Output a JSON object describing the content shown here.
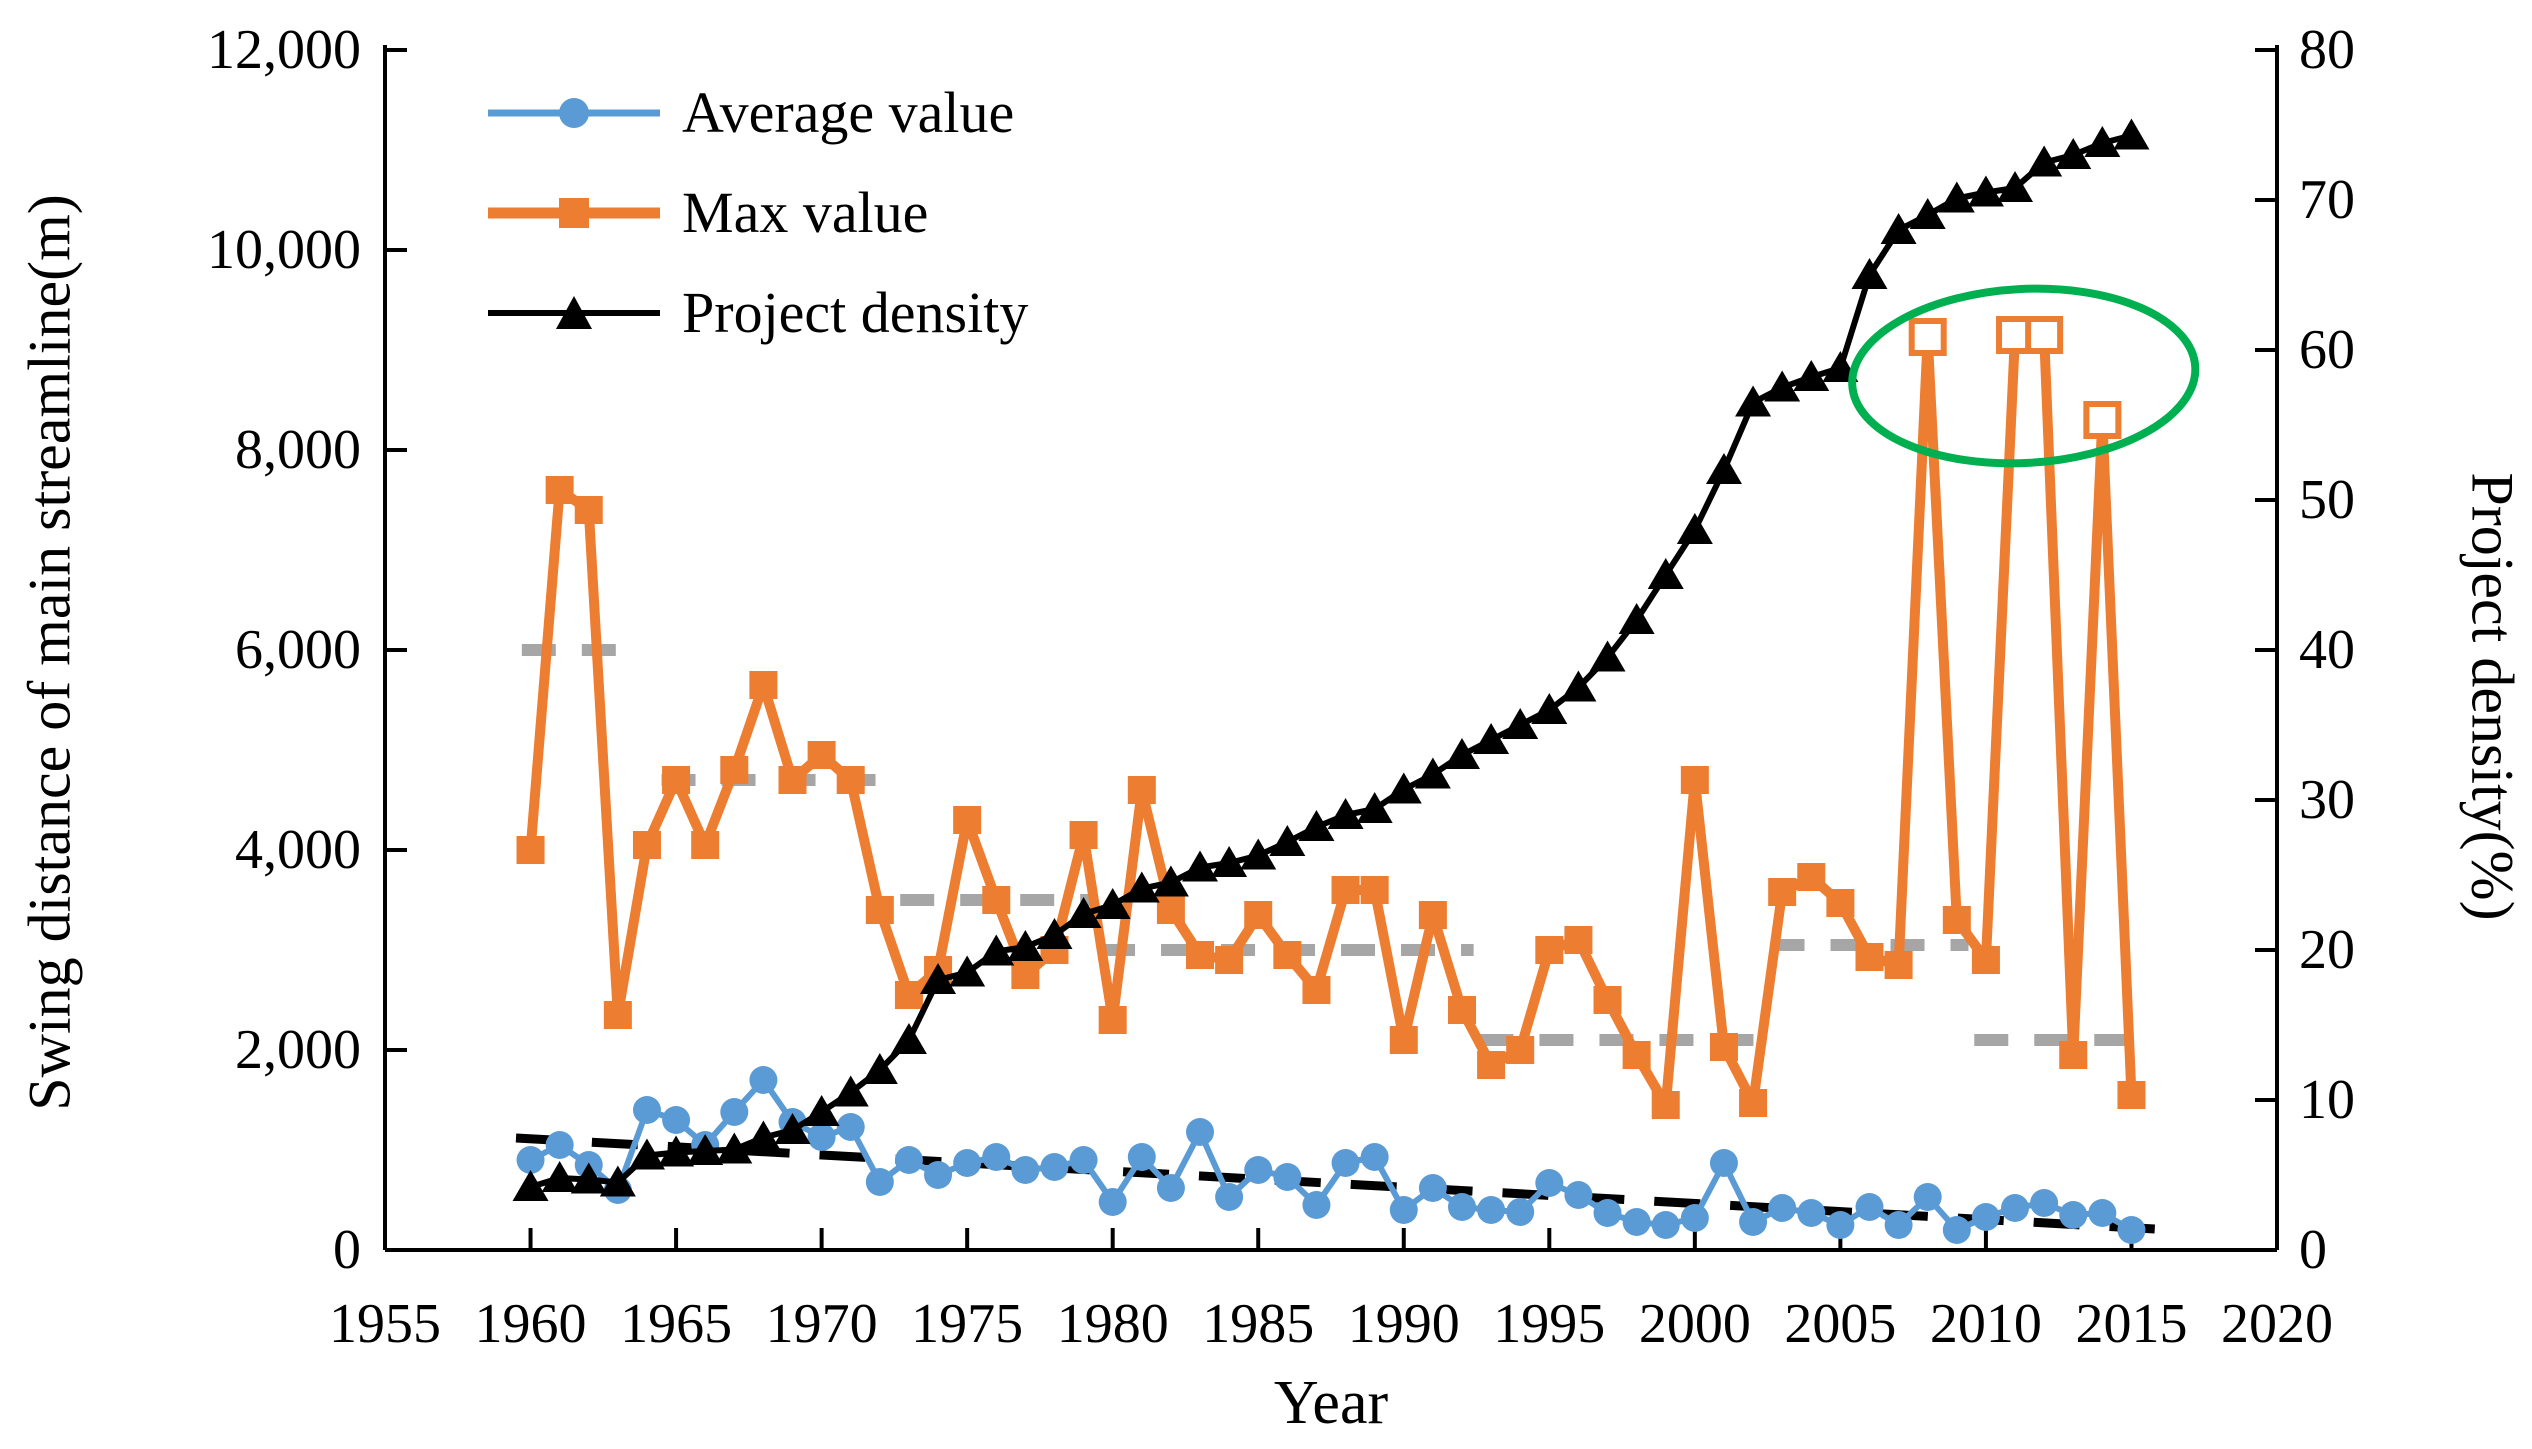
{
  "chart_data": {
    "type": "line",
    "xlabel": "Year",
    "ylabel_left": "Swing distance of main streamline(m)",
    "ylabel_right": "Project density(%)",
    "x_axis": {
      "min": 1955,
      "max": 2020,
      "tick_step": 5,
      "tick_values": [
        1955,
        1960,
        1965,
        1970,
        1975,
        1980,
        1985,
        1990,
        1995,
        2000,
        2005,
        2010,
        2015,
        2020
      ],
      "tick_labels": [
        "1955",
        "1960",
        "1965",
        "1970",
        "1975",
        "1980",
        "1985",
        "1990",
        "1995",
        "2000",
        "2005",
        "2010",
        "2015",
        "2020"
      ]
    },
    "y_left_axis": {
      "min": 0,
      "max": 12000,
      "tick_step": 2000,
      "tick_values": [
        0,
        2000,
        4000,
        6000,
        8000,
        10000,
        12000
      ],
      "tick_labels": [
        "0",
        "2,000",
        "4,000",
        "6,000",
        "8,000",
        "10,000",
        "12,000"
      ]
    },
    "y_right_axis": {
      "min": 0,
      "max": 80,
      "tick_step": 10,
      "tick_values": [
        0,
        10,
        20,
        30,
        40,
        50,
        60,
        70,
        80
      ],
      "tick_labels": [
        "0",
        "10",
        "20",
        "30",
        "40",
        "50",
        "60",
        "70",
        "80"
      ]
    },
    "grid": "off",
    "legend_position": "top-left-inside",
    "years": [
      1960,
      1961,
      1962,
      1963,
      1964,
      1965,
      1966,
      1967,
      1968,
      1969,
      1970,
      1971,
      1972,
      1973,
      1974,
      1975,
      1976,
      1977,
      1978,
      1979,
      1980,
      1981,
      1982,
      1983,
      1984,
      1985,
      1986,
      1987,
      1988,
      1989,
      1990,
      1991,
      1992,
      1993,
      1994,
      1995,
      1996,
      1997,
      1998,
      1999,
      2000,
      2001,
      2002,
      2003,
      2004,
      2005,
      2006,
      2007,
      2008,
      2009,
      2010,
      2011,
      2012,
      2013,
      2014,
      2015
    ],
    "series": [
      {
        "name": "Average value",
        "color": "#5B9BD5",
        "marker": "circle",
        "axis": "left",
        "values": [
          900,
          1050,
          850,
          600,
          1400,
          1300,
          1050,
          1380,
          1700,
          1280,
          1130,
          1230,
          680,
          900,
          750,
          870,
          930,
          800,
          830,
          900,
          480,
          930,
          620,
          1180,
          530,
          800,
          730,
          450,
          870,
          930,
          400,
          620,
          430,
          400,
          380,
          670,
          550,
          370,
          280,
          250,
          320,
          870,
          280,
          420,
          370,
          250,
          430,
          250,
          530,
          200,
          330,
          420,
          470,
          350,
          370,
          200
        ]
      },
      {
        "name": "Max value",
        "color": "#ED7D31",
        "marker": "square",
        "axis": "left",
        "values": [
          4000,
          7600,
          7400,
          2350,
          4050,
          4700,
          4050,
          4800,
          5650,
          4700,
          4950,
          4700,
          3400,
          2550,
          2800,
          4300,
          3500,
          2750,
          3000,
          4150,
          2300,
          4600,
          3400,
          2950,
          2900,
          3350,
          2950,
          2600,
          3600,
          3600,
          2100,
          3350,
          2400,
          1850,
          2000,
          3000,
          3100,
          2500,
          1950,
          1450,
          4700,
          2030,
          1470,
          3580,
          3730,
          3470,
          2930,
          2850,
          9130,
          3300,
          2900,
          9150,
          9150,
          1950,
          8300,
          1550
        ],
        "open_marker_years": [
          2008,
          2011,
          2012,
          2014
        ]
      },
      {
        "name": "Project density",
        "color": "#000000",
        "marker": "triangle",
        "axis": "right",
        "values": [
          4.2,
          4.8,
          4.7,
          4.5,
          6.3,
          6.5,
          6.6,
          6.7,
          7.5,
          8.0,
          9.2,
          10.5,
          12.0,
          14.0,
          18.0,
          18.5,
          19.9,
          20.2,
          21.0,
          22.4,
          23.0,
          24.1,
          24.5,
          25.5,
          25.8,
          26.3,
          27.2,
          28.2,
          29.0,
          29.4,
          30.7,
          31.7,
          33.0,
          34.0,
          35.0,
          36.0,
          37.5,
          39.5,
          42.0,
          45.0,
          48.0,
          52.0,
          56.5,
          57.5,
          58.2,
          58.8,
          65.0,
          68.0,
          69.0,
          70.1,
          70.5,
          70.8,
          72.5,
          73.0,
          73.8,
          74.3
        ]
      }
    ],
    "mean_segments": {
      "color": "#A6A6A6",
      "style": "dashed",
      "segments": [
        {
          "value": 6000,
          "from_year": 1959.7,
          "to_year": 1963.3
        },
        {
          "value": 4700,
          "from_year": 1964.5,
          "to_year": 1972.3
        },
        {
          "value": 3500,
          "from_year": 1972.7,
          "to_year": 1979.4
        },
        {
          "value": 3000,
          "from_year": 1979.6,
          "to_year": 1992.4
        },
        {
          "value": 2100,
          "from_year": 1992.6,
          "to_year": 2002.4
        },
        {
          "value": 3050,
          "from_year": 2002.6,
          "to_year": 2009.4
        },
        {
          "value": 2100,
          "from_year": 2009.6,
          "to_year": 2015.4
        }
      ]
    },
    "trend_line": {
      "color": "#000000",
      "style": "dashed",
      "from_year": 1959.5,
      "from_value": 1120,
      "to_year": 2015.8,
      "to_value": 210
    },
    "annotation_ellipse": {
      "color": "#00B050",
      "center_year": 2011.3,
      "center_value": 8740,
      "rx_years": 5.9,
      "ry_value": 870,
      "rotate_deg": -3
    }
  }
}
